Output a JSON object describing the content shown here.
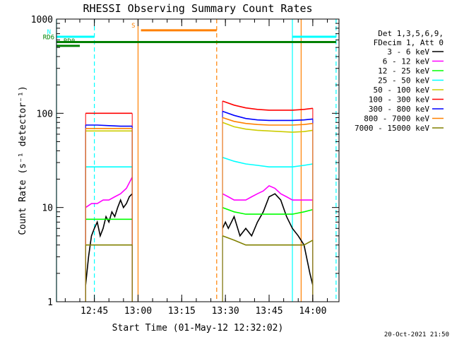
{
  "chart_data": {
    "type": "line",
    "title": "RHESSI Observing Summary Count Rates",
    "xlabel": "Start Time (01-May-12 12:32:02)",
    "ylabel": "Count Rate (s⁻¹ detector⁻¹)",
    "yscale": "log",
    "ylim": [
      1,
      1000
    ],
    "xlim": [
      "12:32",
      "14:09"
    ],
    "x_tick_labels": [
      "12:45",
      "13:00",
      "13:15",
      "13:30",
      "13:45",
      "14:00"
    ],
    "y_tick_labels": [
      "1",
      "10",
      "100",
      "1000"
    ],
    "legend_header": [
      "Det 1,3,5,6,9,",
      "FDecim 1, Att 0"
    ],
    "legend_position": "right",
    "footer": "20-Oct-2021 21:50",
    "series": [
      {
        "name": "3 - 6 keV",
        "color": "#000000",
        "segments": [
          {
            "x": [
              "12:42",
              "12:43",
              "12:44",
              "12:45",
              "12:46",
              "12:47",
              "12:48",
              "12:49",
              "12:50",
              "12:51",
              "12:52",
              "12:53",
              "12:54",
              "12:55",
              "12:56",
              "12:57",
              "12:58"
            ],
            "y": [
              1.5,
              3,
              5,
              6,
              7,
              5,
              6,
              8,
              7,
              9,
              8,
              10,
              12,
              10,
              11,
              13,
              14
            ]
          },
          {
            "x": [
              "13:29",
              "13:30",
              "13:31",
              "13:33",
              "13:35",
              "13:37",
              "13:39",
              "13:41",
              "13:43",
              "13:45",
              "13:47",
              "13:49",
              "13:51",
              "13:53",
              "13:55",
              "13:57",
              "13:59",
              "14:00"
            ],
            "y": [
              6,
              7,
              6,
              8,
              5,
              6,
              5,
              7,
              9,
              13,
              14,
              12,
              8,
              6,
              5,
              4,
              2,
              1.5
            ]
          }
        ]
      },
      {
        "name": "6 - 12 keV",
        "color": "#ff00ff",
        "segments": [
          {
            "x": [
              "12:42",
              "12:44",
              "12:46",
              "12:48",
              "12:50",
              "12:52",
              "12:54",
              "12:56",
              "12:58"
            ],
            "y": [
              10,
              11,
              11,
              12,
              12,
              13,
              14,
              16,
              21
            ]
          },
          {
            "x": [
              "13:29",
              "13:31",
              "13:33",
              "13:35",
              "13:37",
              "13:39",
              "13:41",
              "13:43",
              "13:45",
              "13:47",
              "13:49",
              "13:51",
              "13:53",
              "13:55",
              "13:57",
              "14:00"
            ],
            "y": [
              14,
              13,
              12,
              12,
              12,
              13,
              14,
              15,
              17,
              16,
              14,
              13,
              12,
              12,
              12,
              12
            ]
          }
        ]
      },
      {
        "name": "12 - 25 keV",
        "color": "#00ff00",
        "segments": [
          {
            "x": [
              "12:42",
              "12:46",
              "12:50",
              "12:54",
              "12:58"
            ],
            "y": [
              7.5,
              7.5,
              7.5,
              7.5,
              7.5
            ]
          },
          {
            "x": [
              "13:29",
              "13:33",
              "13:37",
              "13:41",
              "13:45",
              "13:49",
              "13:53",
              "13:57",
              "14:00"
            ],
            "y": [
              10,
              9,
              8.5,
              8.5,
              8.5,
              8.5,
              8.5,
              9,
              9.5
            ]
          }
        ]
      },
      {
        "name": "25 - 50 keV",
        "color": "#00ffff",
        "segments": [
          {
            "x": [
              "12:42",
              "12:46",
              "12:50",
              "12:54",
              "12:58"
            ],
            "y": [
              27,
              27,
              27,
              27,
              27
            ]
          },
          {
            "x": [
              "13:29",
              "13:33",
              "13:37",
              "13:41",
              "13:45",
              "13:49",
              "13:53",
              "13:57",
              "14:00"
            ],
            "y": [
              34,
              31,
              29,
              28,
              27,
              27,
              27,
              28,
              29
            ]
          }
        ]
      },
      {
        "name": "50 - 100 keV",
        "color": "#cccc00",
        "segments": [
          {
            "x": [
              "12:42",
              "12:46",
              "12:50",
              "12:54",
              "12:58"
            ],
            "y": [
              65,
              65,
              65,
              65,
              65
            ]
          },
          {
            "x": [
              "13:29",
              "13:33",
              "13:37",
              "13:41",
              "13:45",
              "13:49",
              "13:53",
              "13:57",
              "14:00"
            ],
            "y": [
              80,
              72,
              68,
              66,
              65,
              64,
              63,
              64,
              66
            ]
          }
        ]
      },
      {
        "name": "100 - 300 keV",
        "color": "#ff0000",
        "segments": [
          {
            "x": [
              "12:42",
              "12:46",
              "12:50",
              "12:54",
              "12:58"
            ],
            "y": [
              100,
              100,
              100,
              100,
              100
            ]
          },
          {
            "x": [
              "13:29",
              "13:33",
              "13:37",
              "13:41",
              "13:45",
              "13:49",
              "13:53",
              "13:57",
              "14:00"
            ],
            "y": [
              135,
              122,
              114,
              110,
              108,
              108,
              108,
              110,
              113
            ]
          }
        ]
      },
      {
        "name": "300 - 800 keV",
        "color": "#0000ff",
        "segments": [
          {
            "x": [
              "12:42",
              "12:46",
              "12:50",
              "12:54",
              "12:58"
            ],
            "y": [
              75,
              75,
              74,
              73,
              73
            ]
          },
          {
            "x": [
              "13:29",
              "13:33",
              "13:37",
              "13:41",
              "13:45",
              "13:49",
              "13:53",
              "13:57",
              "14:00"
            ],
            "y": [
              105,
              95,
              88,
              85,
              84,
              84,
              84,
              85,
              87
            ]
          }
        ]
      },
      {
        "name": "800 - 7000 keV",
        "color": "#ff8000",
        "segments": [
          {
            "x": [
              "12:42",
              "12:46",
              "12:50",
              "12:54",
              "12:58"
            ],
            "y": [
              69,
              69,
              69,
              69,
              69
            ]
          },
          {
            "x": [
              "13:29",
              "13:33",
              "13:37",
              "13:41",
              "13:45",
              "13:49",
              "13:53",
              "13:57",
              "14:00"
            ],
            "y": [
              90,
              82,
              78,
              76,
              75,
              75,
              75,
              76,
              78
            ]
          }
        ]
      },
      {
        "name": "7000 - 15000 keV",
        "color": "#808000",
        "segments": [
          {
            "x": [
              "12:42",
              "12:46",
              "12:50",
              "12:54",
              "12:58"
            ],
            "y": [
              4,
              4,
              4,
              4,
              4
            ]
          },
          {
            "x": [
              "13:29",
              "13:33",
              "13:37",
              "13:41",
              "13:45",
              "13:49",
              "13:53",
              "13:57",
              "14:00"
            ],
            "y": [
              5,
              4.5,
              4,
              4,
              4,
              4,
              4,
              4,
              4.5
            ]
          }
        ]
      }
    ],
    "state_bars": [
      {
        "label": "N",
        "color": "#00ffff",
        "x_start": "12:32",
        "x_end": "12:45",
        "value": 650
      },
      {
        "label": "",
        "color": "#00ffff",
        "x_start": "13:53",
        "x_end": "14:08",
        "value": 650
      },
      {
        "label": "S",
        "color": "#ff8000",
        "x_start": "13:01",
        "x_end": "13:27",
        "value": 760
      },
      {
        "label": "RD6",
        "color": "#008000",
        "x_start": "12:32",
        "x_end": "14:08",
        "value": 570
      },
      {
        "label": "RD0",
        "color": "#008000",
        "x_start": "12:32",
        "x_end": "12:40",
        "value": 520
      }
    ],
    "event_lines": [
      {
        "color": "#00ffff",
        "style": "solid",
        "x": "12:32"
      },
      {
        "color": "#00ffff",
        "style": "dashed",
        "x": "12:45"
      },
      {
        "color": "#ff8000",
        "style": "solid",
        "x": "13:00"
      },
      {
        "color": "#ff8000",
        "style": "dashed",
        "x": "13:27"
      },
      {
        "color": "#00ffff",
        "style": "solid",
        "x": "13:53"
      },
      {
        "color": "#ff8000",
        "style": "solid",
        "x": "13:56"
      },
      {
        "color": "#00ffff",
        "style": "dashed",
        "x": "14:08"
      }
    ]
  }
}
